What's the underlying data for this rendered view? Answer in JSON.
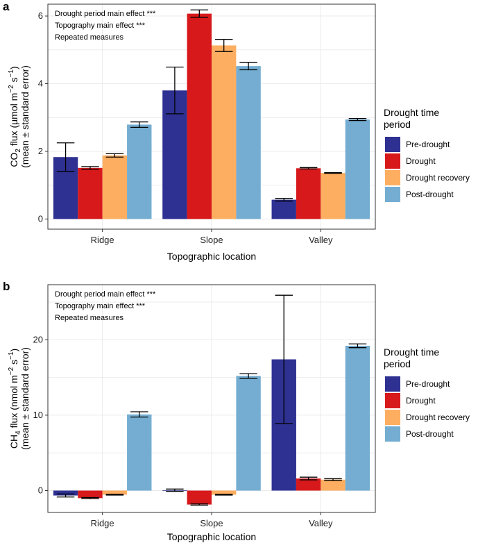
{
  "legend": {
    "title_line1": "Drought time",
    "title_line2": "period",
    "entries": [
      {
        "label": "Pre-drought",
        "color": "#2e3192"
      },
      {
        "label": "Drought",
        "color": "#d7191c"
      },
      {
        "label": "Drought recovery",
        "color": "#fdae61"
      },
      {
        "label": "Post-drought",
        "color": "#74add1"
      }
    ]
  },
  "chart_data": [
    {
      "type": "bar",
      "panel_label": "a",
      "xlabel": "Topographic location",
      "ylabel_prefix": "CO",
      "ylabel_sub": "2",
      "ylabel_mid": " flux (µmol m",
      "ylabel_sup1": "−2",
      "ylabel_mid2": " s",
      "ylabel_sup2": "−1",
      "ylabel_end": ")",
      "ylabel_line2": "(mean ± standard error)",
      "annotations": [
        "Drought period main effect  ***",
        "Topography main effect  ***",
        "Repeated measures"
      ],
      "categories": [
        "Ridge",
        "Slope",
        "Valley"
      ],
      "ylim": [
        -0.3,
        6.35
      ],
      "yticks": [
        0,
        2,
        4,
        6
      ],
      "series": [
        {
          "name": "Pre-drought",
          "values": [
            1.83,
            3.8,
            0.57
          ],
          "errors": [
            0.42,
            0.69,
            0.04
          ]
        },
        {
          "name": "Drought",
          "values": [
            1.51,
            6.07,
            1.5
          ],
          "errors": [
            0.04,
            0.11,
            0.02
          ]
        },
        {
          "name": "Drought recovery",
          "values": [
            1.88,
            5.13,
            1.36
          ],
          "errors": [
            0.05,
            0.18,
            0.01
          ]
        },
        {
          "name": "Post-drought",
          "values": [
            2.79,
            4.52,
            2.94
          ],
          "errors": [
            0.08,
            0.11,
            0.03
          ]
        }
      ]
    },
    {
      "type": "bar",
      "panel_label": "b",
      "xlabel": "Topographic location",
      "ylabel_prefix": "CH",
      "ylabel_sub": "4",
      "ylabel_mid": " flux (nmol m",
      "ylabel_sup1": "−2",
      "ylabel_mid2": " s",
      "ylabel_sup2": "−1",
      "ylabel_end": ")",
      "ylabel_line2": "(mean ± standard error)",
      "annotations": [
        "Drought period main effect  ***",
        "Topography main effect  ***",
        "Repeated measures"
      ],
      "categories": [
        "Ridge",
        "Slope",
        "Valley"
      ],
      "ylim": [
        -2.9,
        27.3
      ],
      "yticks": [
        0,
        10,
        20
      ],
      "series": [
        {
          "name": "Pre-drought",
          "values": [
            -0.65,
            0.05,
            17.4
          ],
          "errors": [
            0.2,
            0.15,
            8.5
          ]
        },
        {
          "name": "Drought",
          "values": [
            -1.0,
            -1.85,
            1.6
          ],
          "errors": [
            0.08,
            0.08,
            0.18
          ]
        },
        {
          "name": "Drought recovery",
          "values": [
            -0.55,
            -0.55,
            1.45
          ],
          "errors": [
            0.05,
            0.05,
            0.12
          ]
        },
        {
          "name": "Post-drought",
          "values": [
            10.1,
            15.2,
            19.2
          ],
          "errors": [
            0.35,
            0.3,
            0.25
          ]
        }
      ]
    }
  ]
}
